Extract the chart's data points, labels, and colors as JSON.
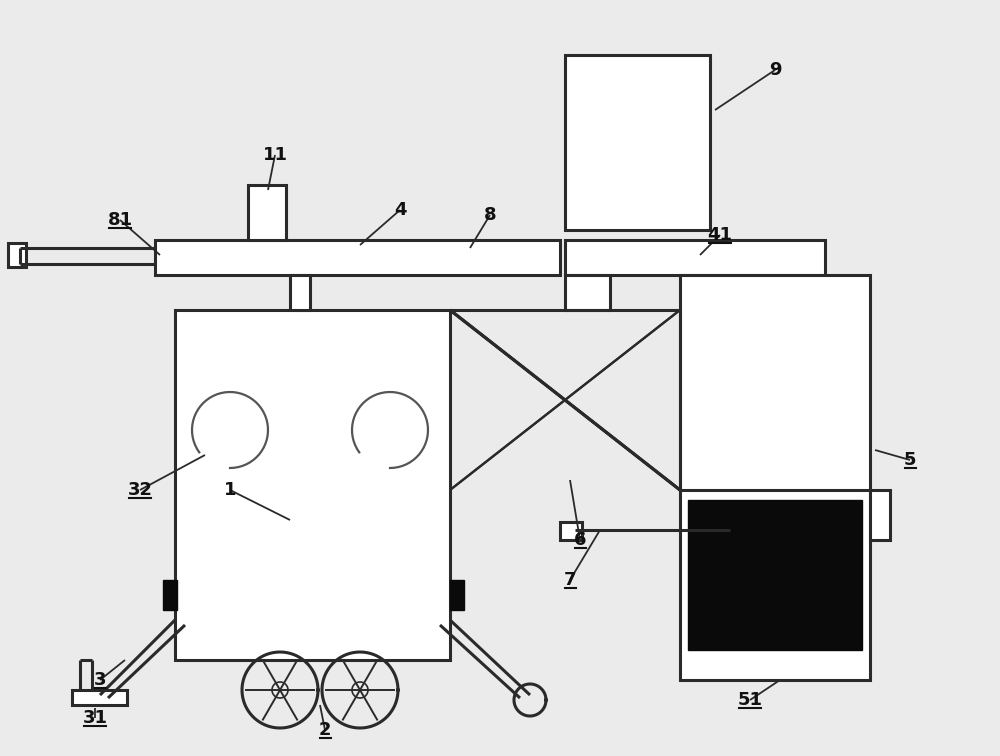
{
  "bg_color": "#ebebeb",
  "line_color": "#2a2a2a",
  "lw": 2.2,
  "lw_thin": 1.6,
  "fill_white": "#ffffff",
  "fill_black": "#0a0a0a",
  "fill_gray": "#cccccc"
}
